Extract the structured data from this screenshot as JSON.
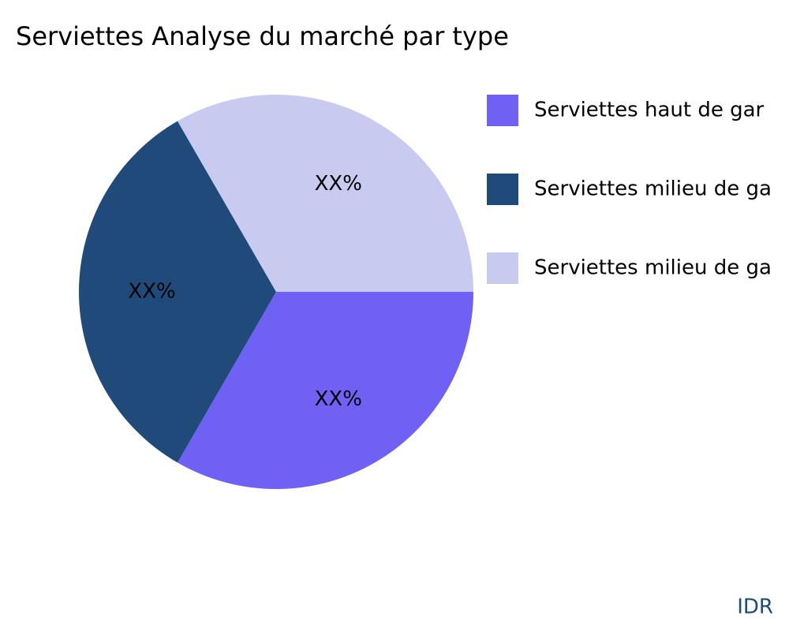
{
  "chart_data": {
    "type": "pie",
    "title": "Serviettes Analyse du marché par type",
    "categories": [
      "Serviettes haut de gar",
      "Serviettes milieu de ga",
      "Serviettes milieu de ga"
    ],
    "values": [
      33.3,
      33.3,
      33.3
    ],
    "value_labels": [
      "XX%",
      "XX%",
      "XX%"
    ],
    "colors": [
      "#6e61f3",
      "#1f4a7a",
      "#c9caf0"
    ],
    "legend": "top-right",
    "watermark": "IDR"
  }
}
